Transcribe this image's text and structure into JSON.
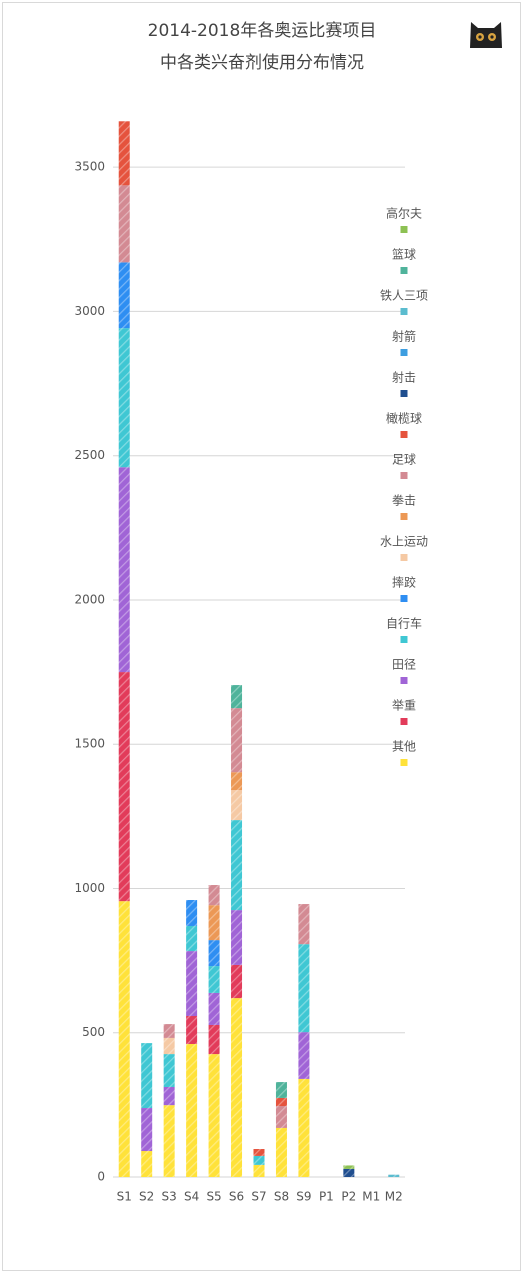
{
  "chart_data": {
    "type": "stacked-bar",
    "title": [
      "2014-2018年各奥运比赛项目",
      "中各类兴奋剂使用分布情况"
    ],
    "categories": [
      "S1",
      "S2",
      "S3",
      "S4",
      "S5",
      "S6",
      "S7",
      "S8",
      "S9",
      "P1",
      "P2",
      "M1",
      "M2"
    ],
    "ylim": [
      0,
      3660
    ],
    "yticks": [
      0,
      500,
      1000,
      1500,
      2000,
      2500,
      3000,
      3500
    ],
    "grid": true,
    "hatched": true,
    "series": [
      {
        "name": "其他",
        "color": "#ffe23a",
        "values": [
          956,
          90,
          249,
          461,
          426,
          620,
          42,
          170,
          340,
          0,
          0,
          0,
          0
        ]
      },
      {
        "name": "举重",
        "color": "#e23b5a",
        "values": [
          794,
          0,
          0,
          97,
          101,
          115,
          0,
          0,
          0,
          0,
          0,
          0,
          0
        ]
      },
      {
        "name": "田径",
        "color": "#a064d6",
        "values": [
          710,
          149,
          63,
          225,
          111,
          190,
          0,
          0,
          162,
          0,
          0,
          0,
          0
        ]
      },
      {
        "name": "自行车",
        "color": "#3fc7d3",
        "values": [
          482,
          225,
          114,
          87,
          93,
          312,
          31,
          0,
          305,
          0,
          0,
          0,
          0
        ]
      },
      {
        "name": "摔跤",
        "color": "#2e8ef2",
        "values": [
          228,
          0,
          0,
          90,
          90,
          0,
          0,
          0,
          0,
          0,
          0,
          0,
          0
        ]
      },
      {
        "name": "水上运动",
        "color": "#f5c9a4",
        "values": [
          0,
          0,
          56,
          0,
          0,
          104,
          0,
          0,
          0,
          0,
          0,
          0,
          0
        ]
      },
      {
        "name": "拳击",
        "color": "#ec9855",
        "values": [
          0,
          0,
          0,
          0,
          121,
          62,
          0,
          0,
          0,
          0,
          0,
          0,
          0
        ]
      },
      {
        "name": "足球",
        "color": "#d38a93",
        "values": [
          267,
          0,
          48,
          0,
          70,
          222,
          0,
          76,
          139,
          0,
          0,
          0,
          0
        ]
      },
      {
        "name": "橄榄球",
        "color": "#e5533d",
        "values": [
          222,
          0,
          0,
          0,
          0,
          0,
          24,
          28,
          0,
          0,
          0,
          0,
          0
        ]
      },
      {
        "name": "射击",
        "color": "#1f4e8f",
        "values": [
          0,
          0,
          0,
          0,
          0,
          0,
          0,
          0,
          0,
          0,
          28,
          0,
          0
        ]
      },
      {
        "name": "射箭",
        "color": "#3d9ee0",
        "values": [
          0,
          0,
          0,
          0,
          0,
          0,
          0,
          0,
          0,
          0,
          0,
          0,
          0
        ]
      },
      {
        "name": "铁人三项",
        "color": "#5bbccf",
        "values": [
          0,
          0,
          0,
          0,
          0,
          0,
          0,
          0,
          0,
          0,
          0,
          0,
          8
        ]
      },
      {
        "name": "篮球",
        "color": "#4fb39b",
        "values": [
          0,
          0,
          0,
          0,
          0,
          80,
          0,
          55,
          0,
          0,
          0,
          0,
          0
        ]
      },
      {
        "name": "高尔夫",
        "color": "#8dc153",
        "values": [
          0,
          0,
          0,
          0,
          0,
          0,
          0,
          0,
          0,
          0,
          12,
          0,
          0
        ]
      }
    ]
  }
}
